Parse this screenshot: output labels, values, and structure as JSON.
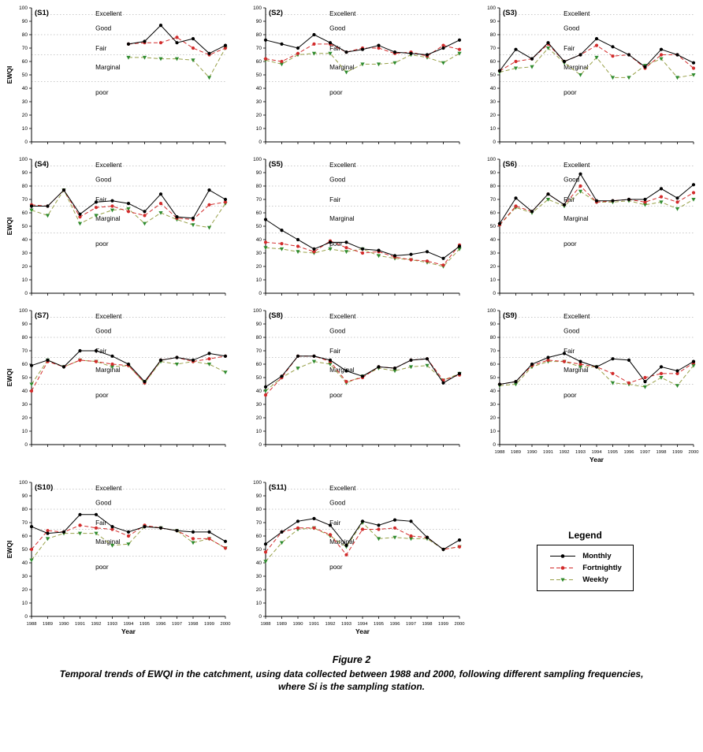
{
  "figure": {
    "caption_title": "Figure 2",
    "caption_line1": "Temporal trends of EWQI in the catchment, using data collected between 1988 and 2000, following different sampling frequencies,",
    "caption_line2": "where Si is the sampling station."
  },
  "legend": {
    "title": "Legend",
    "items": [
      {
        "label": "Monthly",
        "marker": "circle",
        "dash": "solid",
        "line_color": "#000000",
        "marker_color": "#000000"
      },
      {
        "label": "Fortnightly",
        "marker": "circle",
        "dash": "dashed",
        "line_color": "#d22b2b",
        "marker_color": "#d22b2b"
      },
      {
        "label": "Weekly",
        "marker": "triangle",
        "dash": "dashed",
        "line_color": "#98a048",
        "marker_color": "#2e8b2e"
      }
    ]
  },
  "axis": {
    "y_label": "EWQI",
    "x_label": "Year",
    "y_ticks": [
      0,
      10,
      20,
      30,
      40,
      50,
      60,
      70,
      80,
      90,
      100
    ],
    "years": [
      1988,
      1989,
      1990,
      1991,
      1992,
      1993,
      1994,
      1995,
      1996,
      1997,
      1998,
      1999,
      2000
    ],
    "ylim": [
      0,
      100
    ]
  },
  "category_labels": [
    {
      "text": "Excellent",
      "y": 96
    },
    {
      "text": "Good",
      "y": 85
    },
    {
      "text": "Fair",
      "y": 70
    },
    {
      "text": "Marginal",
      "y": 56
    },
    {
      "text": "poor",
      "y": 37
    }
  ],
  "gridlines": [
    95,
    80,
    65,
    45
  ],
  "chart_data": [
    {
      "id": "S1",
      "label": "(S1)",
      "type": "line",
      "show_x_labels": false,
      "show_y_title": true,
      "series": [
        {
          "name": "Monthly",
          "values": [
            null,
            null,
            null,
            null,
            null,
            null,
            73,
            75,
            87,
            74,
            77,
            66,
            72
          ]
        },
        {
          "name": "Fortnightly",
          "values": [
            null,
            null,
            null,
            null,
            null,
            null,
            73,
            74,
            74,
            78,
            70,
            65,
            70
          ]
        },
        {
          "name": "Weekly",
          "values": [
            null,
            null,
            null,
            null,
            null,
            null,
            63,
            63,
            62,
            62,
            61,
            48,
            70
          ]
        }
      ]
    },
    {
      "id": "S2",
      "label": "(S2)",
      "type": "line",
      "show_x_labels": false,
      "show_y_title": false,
      "series": [
        {
          "name": "Monthly",
          "values": [
            76,
            73,
            70,
            80,
            74,
            67,
            69,
            72,
            67,
            66,
            65,
            70,
            76
          ]
        },
        {
          "name": "Fortnightly",
          "values": [
            62,
            60,
            66,
            73,
            73,
            67,
            70,
            70,
            66,
            67,
            64,
            72,
            69
          ]
        },
        {
          "name": "Weekly",
          "values": [
            61,
            58,
            65,
            66,
            66,
            52,
            58,
            58,
            59,
            65,
            63,
            59,
            66
          ]
        }
      ]
    },
    {
      "id": "S3",
      "label": "(S3)",
      "type": "line",
      "show_x_labels": false,
      "show_y_title": false,
      "series": [
        {
          "name": "Monthly",
          "values": [
            53,
            69,
            62,
            74,
            60,
            65,
            77,
            71,
            65,
            56,
            69,
            65,
            59
          ]
        },
        {
          "name": "Fortnightly",
          "values": [
            53,
            60,
            62,
            73,
            60,
            65,
            72,
            64,
            65,
            55,
            65,
            65,
            55
          ]
        },
        {
          "name": "Weekly",
          "values": [
            52,
            55,
            56,
            70,
            59,
            50,
            63,
            48,
            48,
            57,
            62,
            48,
            50
          ]
        }
      ]
    },
    {
      "id": "S4",
      "label": "(S4)",
      "type": "line",
      "show_x_labels": false,
      "show_y_title": true,
      "series": [
        {
          "name": "Monthly",
          "values": [
            65,
            65,
            77,
            59,
            68,
            69,
            67,
            61,
            74,
            57,
            56,
            77,
            70
          ]
        },
        {
          "name": "Fortnightly",
          "values": [
            66,
            65,
            77,
            57,
            64,
            65,
            61,
            58,
            67,
            56,
            55,
            66,
            68
          ]
        },
        {
          "name": "Weekly",
          "values": [
            62,
            58,
            77,
            52,
            58,
            62,
            63,
            52,
            60,
            55,
            51,
            49,
            67
          ]
        }
      ]
    },
    {
      "id": "S5",
      "label": "(S5)",
      "type": "line",
      "show_x_labels": false,
      "show_y_title": false,
      "series": [
        {
          "name": "Monthly",
          "values": [
            55,
            47,
            40,
            33,
            38,
            38,
            33,
            32,
            28,
            29,
            31,
            26,
            35
          ]
        },
        {
          "name": "Fortnightly",
          "values": [
            38,
            37,
            35,
            31,
            39,
            34,
            30,
            31,
            27,
            25,
            24,
            21,
            36
          ]
        },
        {
          "name": "Weekly",
          "values": [
            34,
            33,
            31,
            30,
            33,
            31,
            33,
            28,
            26,
            25,
            23,
            20,
            33
          ]
        }
      ]
    },
    {
      "id": "S6",
      "label": "(S6)",
      "type": "line",
      "show_x_labels": false,
      "show_y_title": false,
      "series": [
        {
          "name": "Monthly",
          "values": [
            52,
            71,
            61,
            74,
            66,
            89,
            69,
            69,
            70,
            70,
            78,
            71,
            81
          ]
        },
        {
          "name": "Fortnightly",
          "values": [
            51,
            65,
            61,
            74,
            66,
            80,
            68,
            69,
            70,
            68,
            72,
            68,
            75
          ]
        },
        {
          "name": "Weekly",
          "values": [
            51,
            64,
            60,
            70,
            65,
            76,
            68,
            68,
            69,
            66,
            68,
            63,
            70
          ]
        }
      ]
    },
    {
      "id": "S7",
      "label": "(S7)",
      "type": "line",
      "show_x_labels": false,
      "show_y_title": true,
      "series": [
        {
          "name": "Monthly",
          "values": [
            59,
            63,
            58,
            70,
            70,
            66,
            60,
            47,
            63,
            65,
            63,
            68,
            66
          ]
        },
        {
          "name": "Fortnightly",
          "values": [
            40,
            62,
            58,
            63,
            62,
            60,
            59,
            46,
            63,
            65,
            62,
            64,
            66
          ]
        },
        {
          "name": "Weekly",
          "values": [
            45,
            63,
            58,
            63,
            62,
            58,
            59,
            46,
            62,
            60,
            62,
            60,
            54
          ]
        }
      ]
    },
    {
      "id": "S8",
      "label": "(S8)",
      "type": "line",
      "show_x_labels": false,
      "show_y_title": false,
      "series": [
        {
          "name": "Monthly",
          "values": [
            43,
            51,
            66,
            66,
            63,
            55,
            51,
            58,
            57,
            63,
            64,
            46,
            53
          ]
        },
        {
          "name": "Fortnightly",
          "values": [
            37,
            50,
            66,
            66,
            62,
            47,
            50,
            58,
            57,
            63,
            64,
            48,
            52
          ]
        },
        {
          "name": "Weekly",
          "values": [
            40,
            50,
            57,
            62,
            60,
            46,
            51,
            57,
            55,
            58,
            59,
            48,
            53
          ]
        }
      ]
    },
    {
      "id": "S9",
      "label": "(S9)",
      "type": "line",
      "show_x_labels": true,
      "show_y_title": false,
      "series": [
        {
          "name": "Monthly",
          "values": [
            45,
            47,
            60,
            65,
            68,
            62,
            58,
            64,
            63,
            47,
            58,
            55,
            62
          ]
        },
        {
          "name": "Fortnightly",
          "values": [
            45,
            47,
            59,
            63,
            62,
            60,
            58,
            53,
            46,
            50,
            53,
            53,
            61
          ]
        },
        {
          "name": "Weekly",
          "values": [
            44,
            45,
            58,
            62,
            62,
            58,
            58,
            46,
            45,
            43,
            50,
            44,
            59
          ]
        }
      ]
    },
    {
      "id": "S10",
      "label": "(S10)",
      "type": "line",
      "show_x_labels": true,
      "show_y_title": true,
      "series": [
        {
          "name": "Monthly",
          "values": [
            67,
            62,
            63,
            76,
            76,
            67,
            63,
            67,
            66,
            64,
            63,
            63,
            56
          ]
        },
        {
          "name": "Fortnightly",
          "values": [
            50,
            64,
            63,
            68,
            66,
            65,
            60,
            68,
            66,
            64,
            58,
            58,
            51
          ]
        },
        {
          "name": "Weekly",
          "values": [
            42,
            58,
            62,
            62,
            62,
            53,
            54,
            67,
            66,
            64,
            55,
            58,
            51
          ]
        }
      ]
    },
    {
      "id": "S11",
      "label": "(S11)",
      "type": "line",
      "show_x_labels": true,
      "show_y_title": false,
      "series": [
        {
          "name": "Monthly",
          "values": [
            54,
            63,
            71,
            73,
            68,
            53,
            71,
            68,
            72,
            71,
            59,
            50,
            57
          ]
        },
        {
          "name": "Fortnightly",
          "values": [
            48,
            63,
            66,
            66,
            61,
            46,
            65,
            65,
            66,
            60,
            59,
            50,
            52
          ]
        },
        {
          "name": "Weekly",
          "values": [
            41,
            55,
            65,
            66,
            60,
            52,
            70,
            58,
            59,
            58,
            58,
            50,
            52
          ]
        }
      ]
    }
  ]
}
